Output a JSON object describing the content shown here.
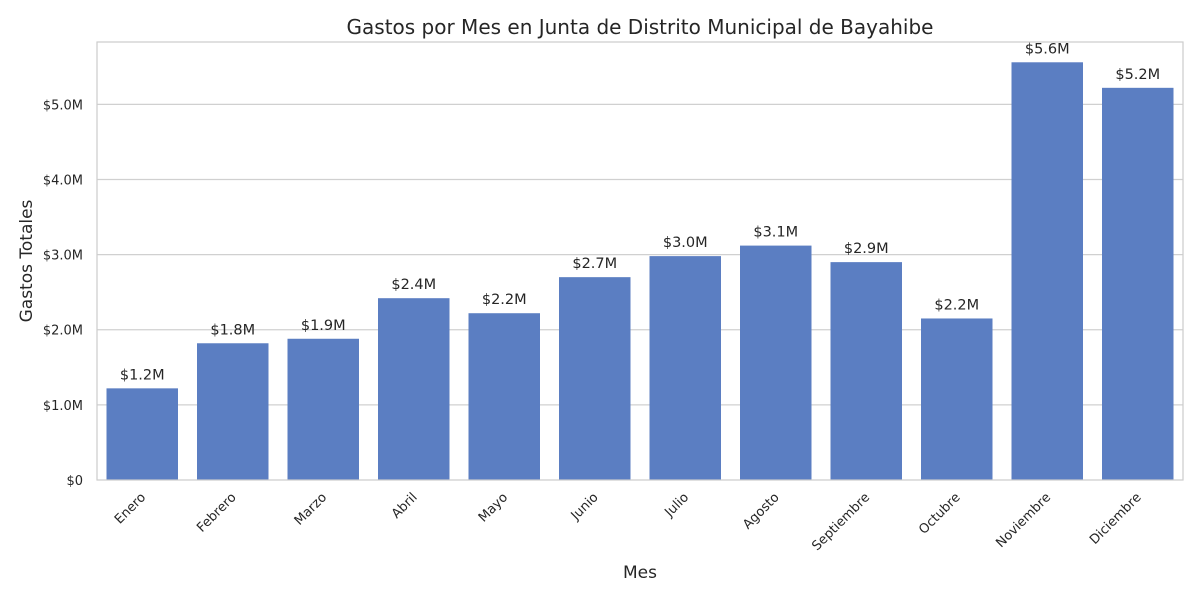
{
  "chart_data": {
    "type": "bar",
    "title": "Gastos por Mes en Junta de Distrito Municipal de Bayahibe",
    "xlabel": "Mes",
    "ylabel": "Gastos Totales",
    "categories": [
      "Enero",
      "Febrero",
      "Marzo",
      "Abril",
      "Mayo",
      "Junio",
      "Julio",
      "Agosto",
      "Septiembre",
      "Octubre",
      "Noviembre",
      "Diciembre"
    ],
    "values": [
      1220000,
      1820000,
      1880000,
      2420000,
      2220000,
      2700000,
      2980000,
      3120000,
      2900000,
      2150000,
      5560000,
      5220000
    ],
    "data_labels": [
      "$1.2M",
      "$1.8M",
      "$1.9M",
      "$2.4M",
      "$2.2M",
      "$2.7M",
      "$3.0M",
      "$3.1M",
      "$2.9M",
      "$2.2M",
      "$5.6M",
      "$5.2M"
    ],
    "yticks": [
      0,
      1000000,
      2000000,
      3000000,
      4000000,
      5000000
    ],
    "ytick_labels": [
      "$0",
      "$1.0M",
      "$2.0M",
      "$3.0M",
      "$4.0M",
      "$5.0M"
    ],
    "ylim": [
      0,
      5830000
    ],
    "grid": true,
    "bar_color": "#5b7ec2"
  }
}
